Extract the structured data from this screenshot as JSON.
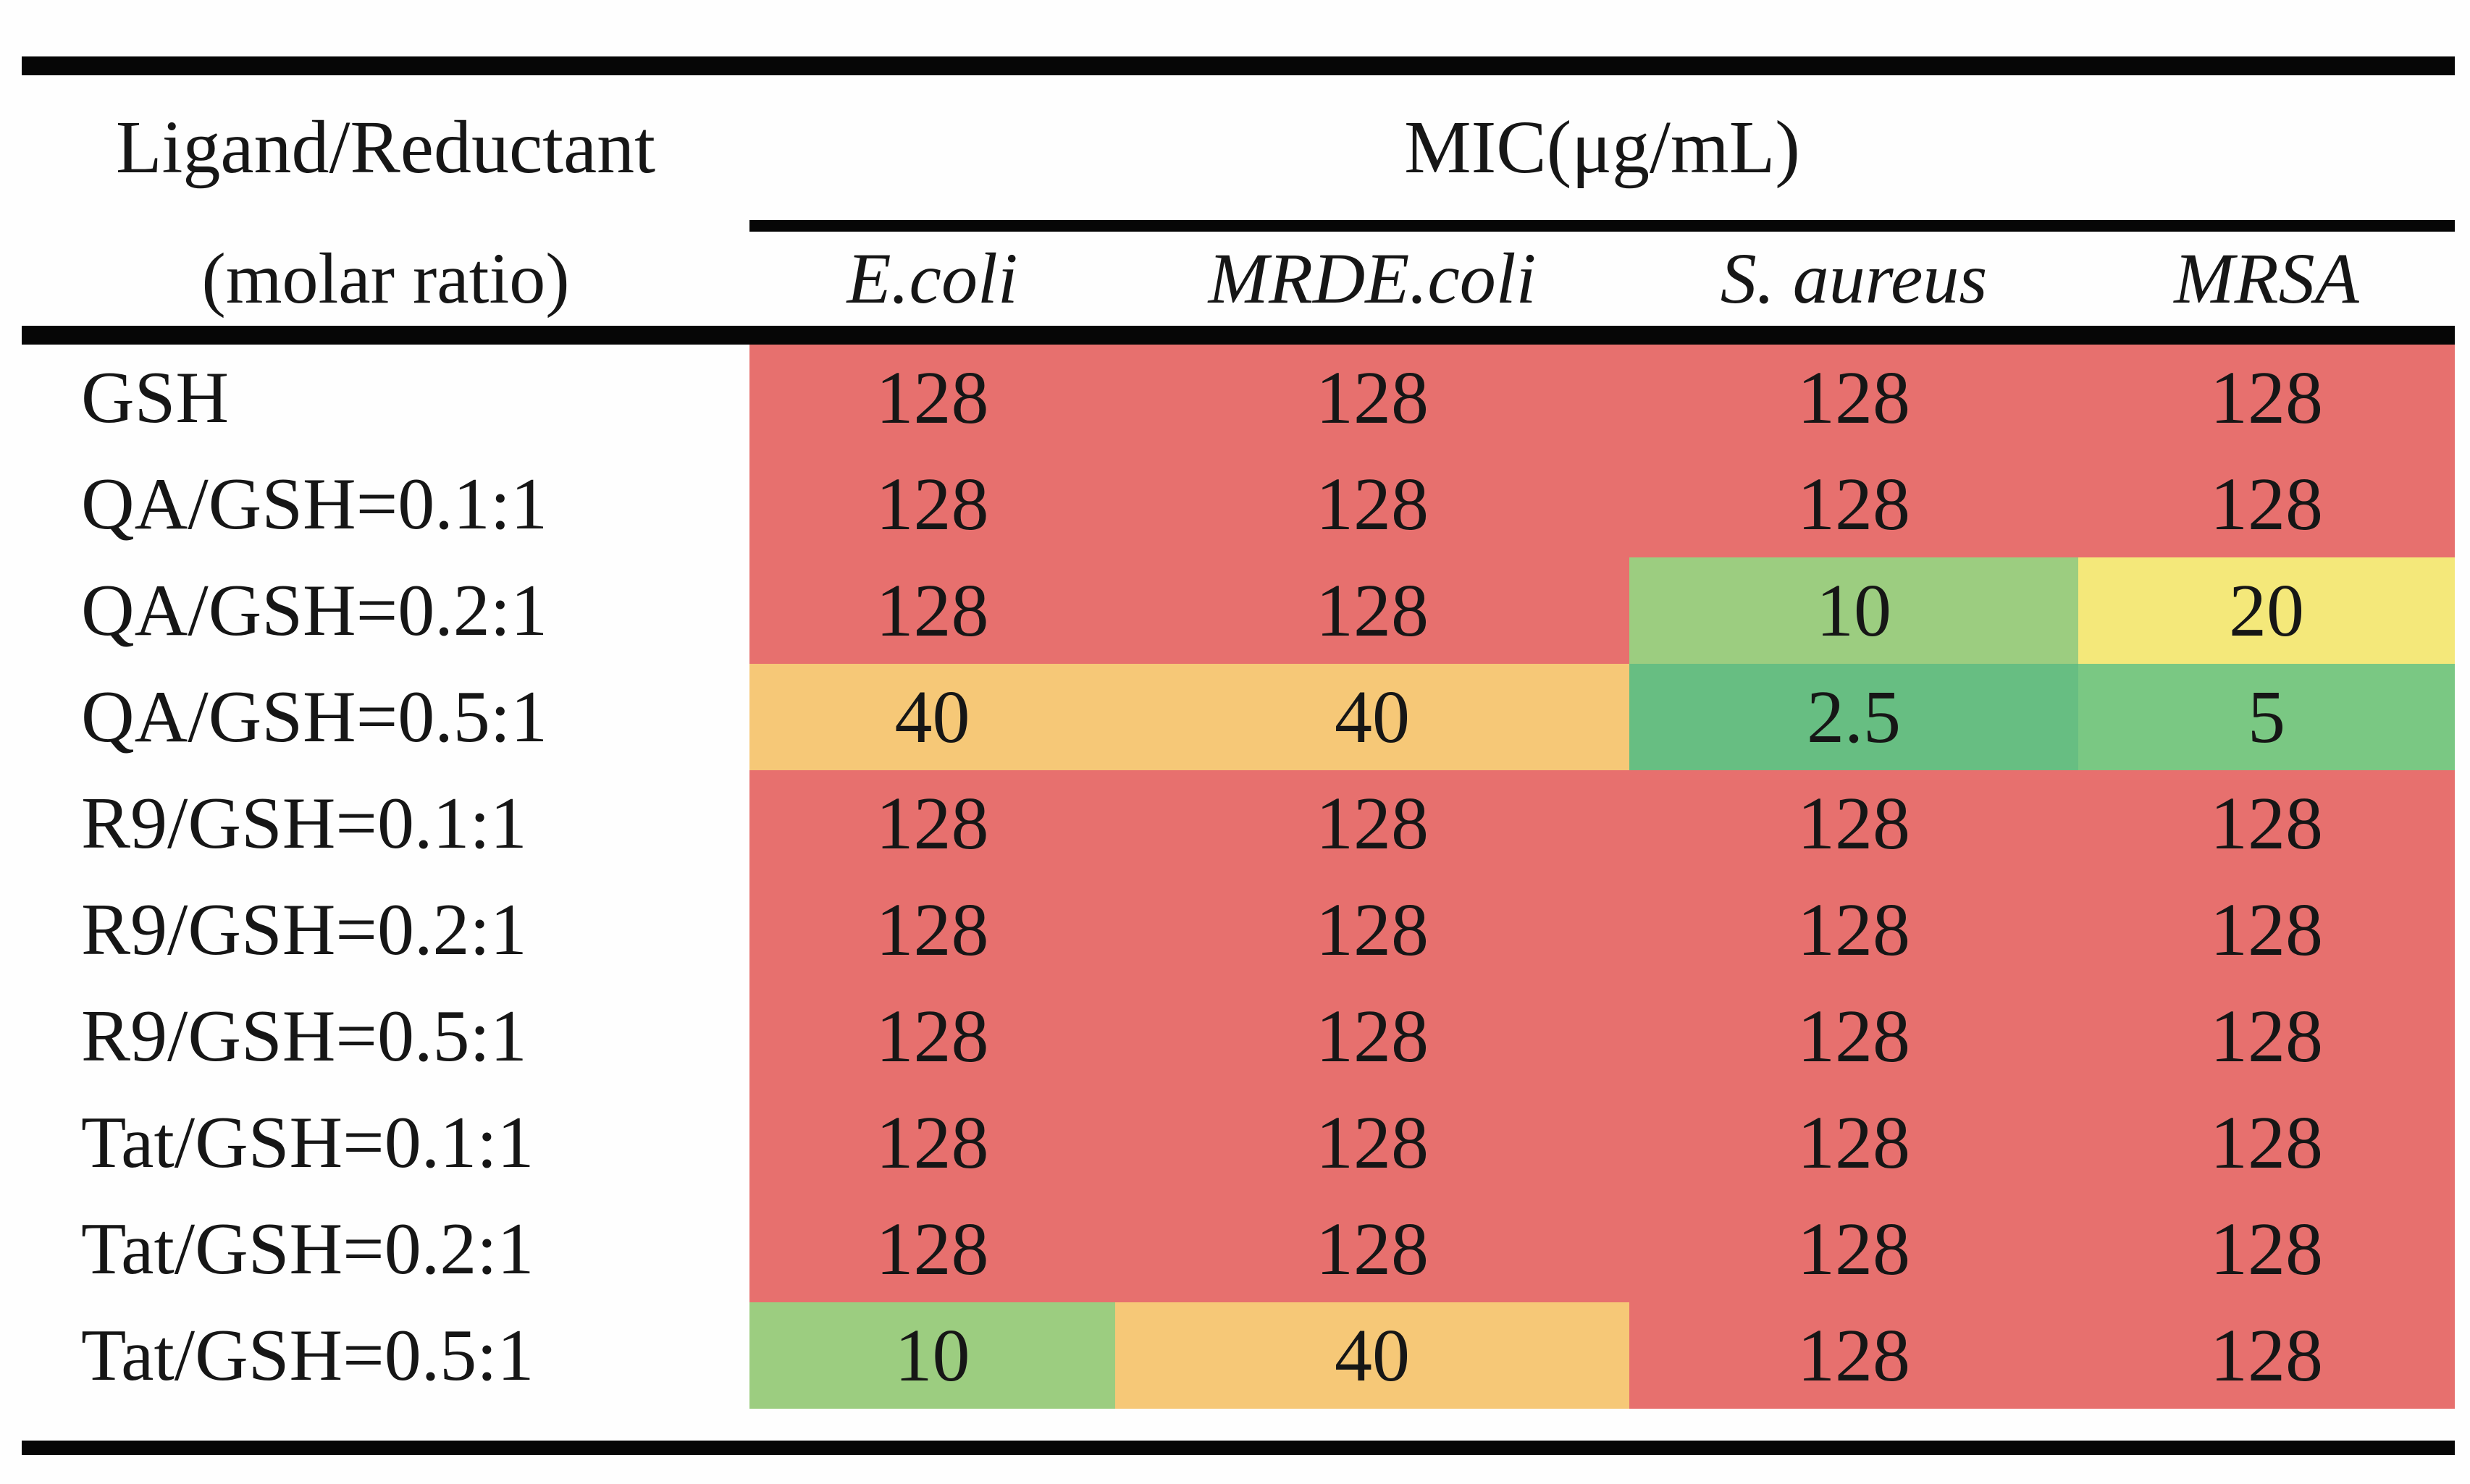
{
  "palette": {
    "red": "#E7706E",
    "orange": "#F6C877",
    "yellow": "#F4E87A",
    "green_light": "#9CCD80",
    "green_medium": "#7AC883",
    "green_dark": "#67BE82"
  },
  "table": {
    "header": {
      "row1_col1": "Ligand/Reductant",
      "row2_col1": "(molar ratio)",
      "group": "MIC(μg/mL)",
      "columns": [
        {
          "prefix": "",
          "name": "E.coli"
        },
        {
          "prefix": "MRD ",
          "name": "E.coli"
        },
        {
          "prefix": "",
          "name": "S. aureus"
        },
        {
          "prefix": "",
          "name": "MRSA"
        }
      ]
    },
    "rows": [
      {
        "label": "GSH",
        "cells": [
          {
            "value": "128",
            "color": "red"
          },
          {
            "value": "128",
            "color": "red"
          },
          {
            "value": "128",
            "color": "red"
          },
          {
            "value": "128",
            "color": "red"
          }
        ]
      },
      {
        "label": "QA/GSH=0.1:1",
        "cells": [
          {
            "value": "128",
            "color": "red"
          },
          {
            "value": "128",
            "color": "red"
          },
          {
            "value": "128",
            "color": "red"
          },
          {
            "value": "128",
            "color": "red"
          }
        ]
      },
      {
        "label": "QA/GSH=0.2:1",
        "cells": [
          {
            "value": "128",
            "color": "red"
          },
          {
            "value": "128",
            "color": "red"
          },
          {
            "value": "10",
            "color": "green_light"
          },
          {
            "value": "20",
            "color": "yellow"
          }
        ]
      },
      {
        "label": "QA/GSH=0.5:1",
        "cells": [
          {
            "value": "40",
            "color": "orange"
          },
          {
            "value": "40",
            "color": "orange"
          },
          {
            "value": "2.5",
            "color": "green_dark"
          },
          {
            "value": "5",
            "color": "green_medium"
          }
        ]
      },
      {
        "label": "R9/GSH=0.1:1",
        "cells": [
          {
            "value": "128",
            "color": "red"
          },
          {
            "value": "128",
            "color": "red"
          },
          {
            "value": "128",
            "color": "red"
          },
          {
            "value": "128",
            "color": "red"
          }
        ]
      },
      {
        "label": "R9/GSH=0.2:1",
        "cells": [
          {
            "value": "128",
            "color": "red"
          },
          {
            "value": "128",
            "color": "red"
          },
          {
            "value": "128",
            "color": "red"
          },
          {
            "value": "128",
            "color": "red"
          }
        ]
      },
      {
        "label": "R9/GSH=0.5:1",
        "cells": [
          {
            "value": "128",
            "color": "red"
          },
          {
            "value": "128",
            "color": "red"
          },
          {
            "value": "128",
            "color": "red"
          },
          {
            "value": "128",
            "color": "red"
          }
        ]
      },
      {
        "label": "Tat/GSH=0.1:1",
        "cells": [
          {
            "value": "128",
            "color": "red"
          },
          {
            "value": "128",
            "color": "red"
          },
          {
            "value": "128",
            "color": "red"
          },
          {
            "value": "128",
            "color": "red"
          }
        ]
      },
      {
        "label": "Tat/GSH=0.2:1",
        "cells": [
          {
            "value": "128",
            "color": "red"
          },
          {
            "value": "128",
            "color": "red"
          },
          {
            "value": "128",
            "color": "red"
          },
          {
            "value": "128",
            "color": "red"
          }
        ]
      },
      {
        "label": "Tat/GSH=0.5:1",
        "cells": [
          {
            "value": "10",
            "color": "green_light"
          },
          {
            "value": "40",
            "color": "orange"
          },
          {
            "value": "128",
            "color": "red"
          },
          {
            "value": "128",
            "color": "red"
          }
        ]
      }
    ]
  },
  "chart_data": {
    "type": "table",
    "title": "MIC(μg/mL)",
    "row_header": "Ligand/Reductant (molar ratio)",
    "columns": [
      "E.coli",
      "MRD E.coli",
      "S. aureus",
      "MRSA"
    ],
    "rows": [
      "GSH",
      "QA/GSH=0.1:1",
      "QA/GSH=0.2:1",
      "QA/GSH=0.5:1",
      "R9/GSH=0.1:1",
      "R9/GSH=0.2:1",
      "R9/GSH=0.5:1",
      "Tat/GSH=0.1:1",
      "Tat/GSH=0.2:1",
      "Tat/GSH=0.5:1"
    ],
    "values": [
      [
        128,
        128,
        128,
        128
      ],
      [
        128,
        128,
        128,
        128
      ],
      [
        128,
        128,
        10,
        20
      ],
      [
        40,
        40,
        2.5,
        5
      ],
      [
        128,
        128,
        128,
        128
      ],
      [
        128,
        128,
        128,
        128
      ],
      [
        128,
        128,
        128,
        128
      ],
      [
        128,
        128,
        128,
        128
      ],
      [
        128,
        128,
        128,
        128
      ],
      [
        10,
        40,
        128,
        128
      ]
    ],
    "color_scale": {
      "high_red": 128,
      "mid_yellow": 20,
      "low_green": 2.5
    },
    "legend_position": "none",
    "grid": false
  }
}
